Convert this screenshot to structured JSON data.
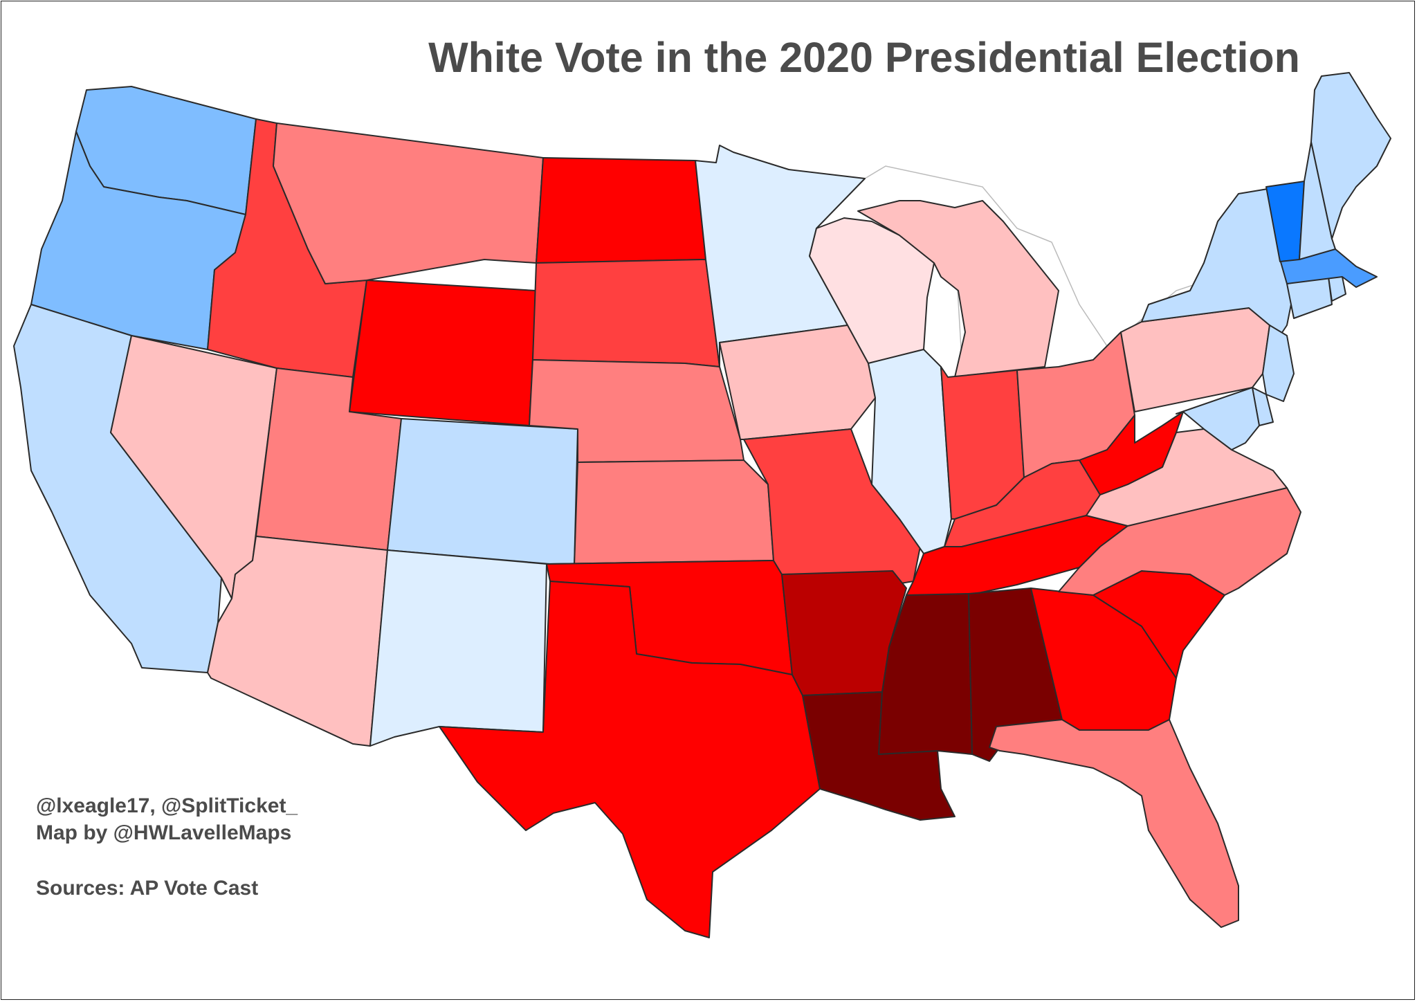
{
  "title": "White Vote in the 2020 Presidential Election",
  "credits": {
    "line1": "@lxeagle17, @SplitTicket_",
    "line2": "Map by @HWLavelleMaps",
    "sources": "Sources: AP Vote Cast"
  },
  "colors": {
    "dem_strong": "#0a78ff",
    "dem_medium": "#4a9cff",
    "dem_lean": "#7fbdff",
    "dem_tilt": "#bfdeff",
    "dem_slight": "#ddeeff",
    "rep_slight": "#ffe0e2",
    "rep_tilt": "#ffc0c0",
    "rep_lean": "#ff7f7f",
    "rep_medium": "#ff4040",
    "rep_strong": "#ff0000",
    "rep_very": "#bb0000",
    "rep_extreme": "#7a0000"
  },
  "states": {
    "WA": "dem_lean",
    "OR": "dem_lean",
    "CA": "dem_tilt",
    "NV": "rep_tilt",
    "ID": "rep_medium",
    "MT": "rep_lean",
    "WY": "rep_strong",
    "UT": "rep_lean",
    "AZ": "rep_tilt",
    "CO": "dem_tilt",
    "NM": "dem_slight",
    "ND": "rep_strong",
    "SD": "rep_medium",
    "NE": "rep_lean",
    "KS": "rep_lean",
    "OK": "rep_strong",
    "TX": "rep_strong",
    "MN": "dem_slight",
    "IA": "rep_tilt",
    "MO": "rep_medium",
    "AR": "rep_very",
    "LA": "rep_extreme",
    "WI": "rep_slight",
    "IL": "dem_slight",
    "MI": "rep_tilt",
    "IN": "rep_medium",
    "OH": "rep_lean",
    "KY": "rep_medium",
    "TN": "rep_strong",
    "MS": "rep_extreme",
    "AL": "rep_extreme",
    "GA": "rep_strong",
    "FL": "rep_lean",
    "SC": "rep_strong",
    "NC": "rep_lean",
    "VA": "rep_tilt",
    "WV": "rep_strong",
    "PA": "rep_tilt",
    "NY": "dem_tilt",
    "VT": "dem_strong",
    "NH": "dem_tilt",
    "ME": "dem_tilt",
    "MA": "dem_medium",
    "RI": "dem_tilt",
    "CT": "dem_tilt",
    "NJ": "dem_tilt",
    "DE": "dem_tilt",
    "MD": "dem_tilt"
  }
}
